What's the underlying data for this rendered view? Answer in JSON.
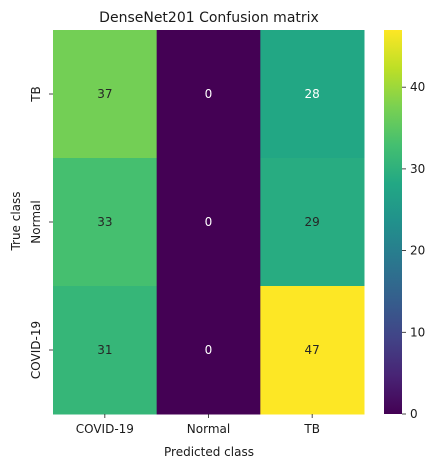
{
  "chart_data": {
    "type": "heatmap",
    "title": "DenseNet201 Confusion matrix",
    "xlabel": "Predicted class",
    "ylabel": "True class",
    "x_categories": [
      "COVID-19",
      "Normal",
      "TB"
    ],
    "y_categories": [
      "TB",
      "Normal",
      "COVID-19"
    ],
    "values": [
      [
        37,
        0,
        28
      ],
      [
        33,
        0,
        29
      ],
      [
        31,
        0,
        47
      ]
    ],
    "colormap": "viridis",
    "colorbar": {
      "range": [
        0,
        47
      ],
      "ticks": [
        0,
        10,
        20,
        30,
        40
      ]
    },
    "grid": false,
    "legend": "colorbar-right"
  }
}
